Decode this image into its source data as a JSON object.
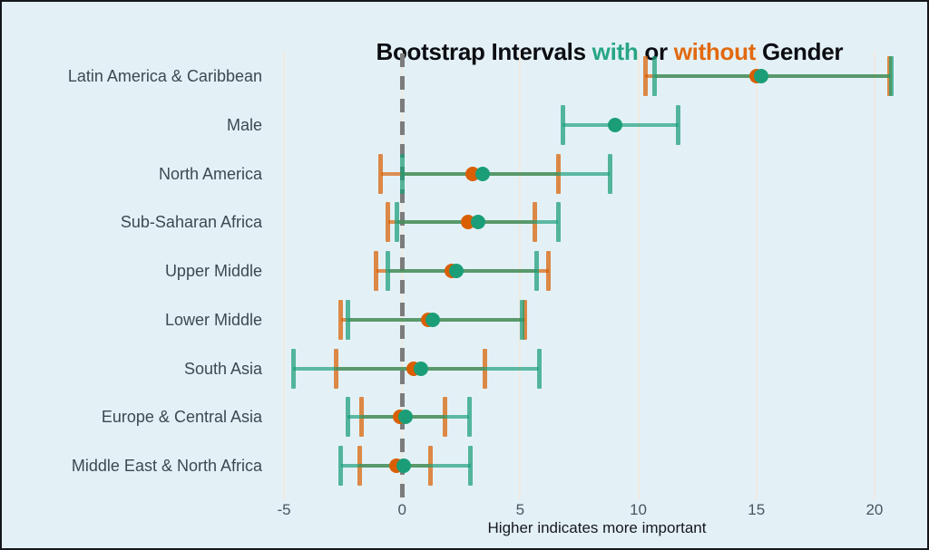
{
  "title": {
    "prefix": "Bootstrap Intervals ",
    "with_word": "with",
    "middle": " or ",
    "without_word": "without",
    "suffix": " Gender"
  },
  "colors": {
    "background": "#e3f1f7",
    "page_border": "#14171c",
    "title_text": "#0c0d12",
    "title_with": "#27a683",
    "title_without": "#e2690e",
    "with_gender": "#1b9e77",
    "without_gender": "#d95f02",
    "zero_line": "#7c7c7c",
    "gridline": "#f0e9e1",
    "category_text": "#3d4852",
    "tick_text": "#4b545e",
    "xlabel_text": "#16181c"
  },
  "chart_data": {
    "type": "scatter",
    "variant": "horizontal-interval-errorbar",
    "title": "Bootstrap Intervals with or without Gender",
    "xlabel": "Higher indicates more important",
    "x_ticks": [
      -5,
      0,
      5,
      10,
      15,
      20
    ],
    "xlim": [
      -5.5,
      22.0
    ],
    "zero_reference_line": 0,
    "grid": true,
    "legend_position": "encoded-in-title-colors",
    "categories": [
      "Latin America & Caribbean",
      "Male",
      "North America",
      "Sub-Saharan Africa",
      "Upper Middle",
      "Lower Middle",
      "South Asia",
      "Europe & Central Asia",
      "Middle East & North Africa"
    ],
    "series": [
      {
        "name": "without Gender",
        "color": "#d95f02",
        "intervals_low_center_high": [
          [
            10.3,
            15.0,
            20.65
          ],
          null,
          [
            -0.9,
            3.0,
            6.6
          ],
          [
            -0.6,
            2.8,
            5.6
          ],
          [
            -1.1,
            2.1,
            6.2
          ],
          [
            -2.6,
            1.1,
            5.2
          ],
          [
            -2.8,
            0.5,
            3.5
          ],
          [
            -1.7,
            -0.1,
            1.8
          ],
          [
            -1.8,
            -0.25,
            1.2
          ]
        ]
      },
      {
        "name": "with Gender",
        "color": "#1b9e77",
        "intervals_low_center_high": [
          [
            10.7,
            15.2,
            20.7
          ],
          [
            6.8,
            9.0,
            11.7
          ],
          [
            0.0,
            3.4,
            8.8
          ],
          [
            -0.2,
            3.2,
            6.6
          ],
          [
            -0.6,
            2.3,
            5.7
          ],
          [
            -2.3,
            1.3,
            5.1
          ],
          [
            -4.6,
            0.8,
            5.8
          ],
          [
            -2.3,
            0.15,
            2.85
          ],
          [
            -2.6,
            0.05,
            2.9
          ]
        ]
      }
    ]
  }
}
